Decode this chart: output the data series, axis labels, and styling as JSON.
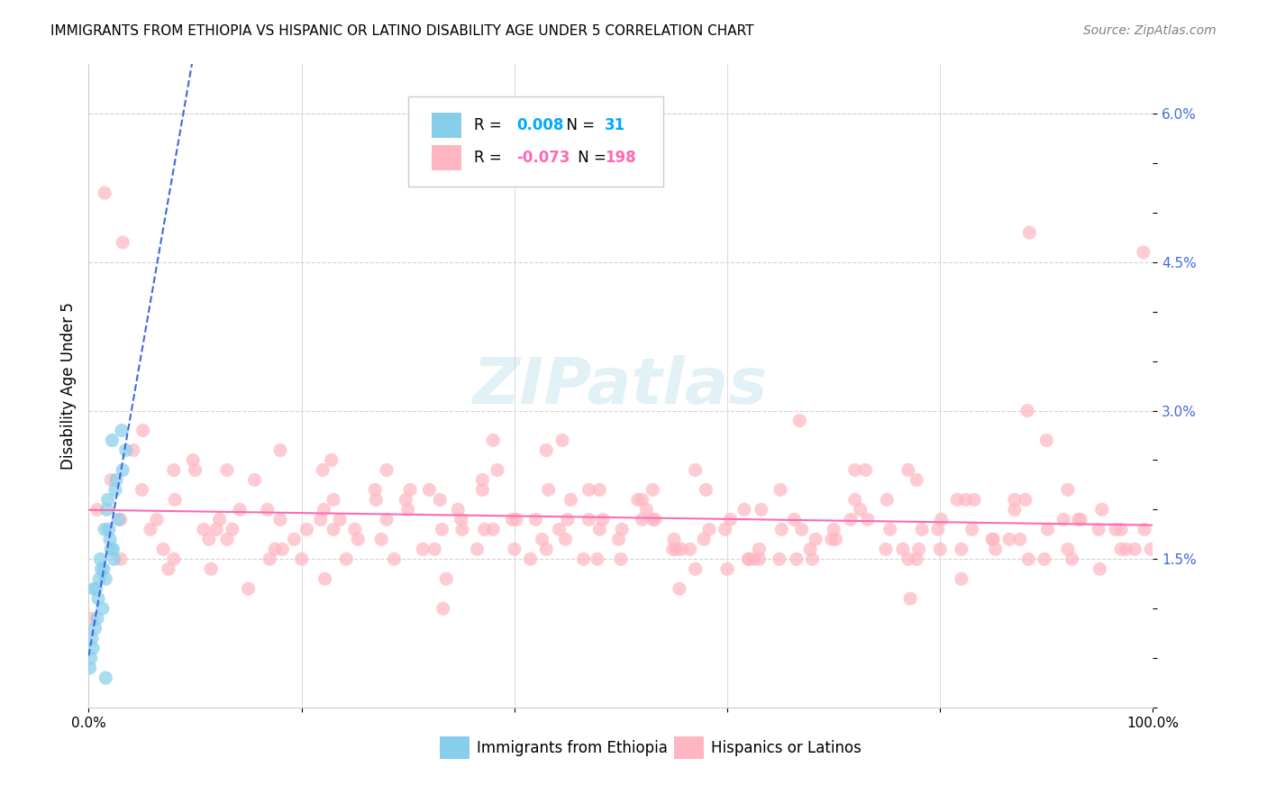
{
  "title": "IMMIGRANTS FROM ETHIOPIA VS HISPANIC OR LATINO DISABILITY AGE UNDER 5 CORRELATION CHART",
  "source": "Source: ZipAtlas.com",
  "xlabel": "",
  "ylabel": "Disability Age Under 5",
  "x_ticks": [
    0.0,
    20.0,
    40.0,
    60.0,
    80.0,
    100.0
  ],
  "x_tick_labels": [
    "0.0%",
    "",
    "",
    "",
    "",
    "100.0%"
  ],
  "y_ticks": [
    0.0,
    0.5,
    1.0,
    1.5,
    2.0,
    2.5,
    3.0,
    3.5,
    4.0,
    4.5,
    5.0,
    5.5,
    6.0
  ],
  "y_tick_labels": [
    "",
    "",
    "",
    "1.5%",
    "",
    "",
    "3.0%",
    "",
    "",
    "4.5%",
    "",
    "",
    "6.0%"
  ],
  "xlim": [
    0.0,
    100.0
  ],
  "ylim": [
    0.0,
    6.5
  ],
  "legend_r_blue": "0.008",
  "legend_n_blue": "31",
  "legend_r_pink": "-0.073",
  "legend_n_pink": "198",
  "blue_color": "#87CEEB",
  "pink_color": "#FFB6C1",
  "trend_blue_color": "#4169E1",
  "trend_pink_color": "#FF69B4",
  "grid_color": "#d3d3d3",
  "watermark": "ZIPatlas",
  "background_color": "#ffffff",
  "blue_scatter": {
    "x": [
      1.2,
      2.1,
      0.5,
      1.8,
      3.2,
      0.8,
      1.5,
      2.5,
      0.3,
      1.1,
      2.8,
      1.6,
      0.9,
      3.5,
      1.3,
      2.0,
      0.6,
      1.7,
      2.3,
      0.4,
      1.4,
      2.6,
      0.7,
      1.9,
      3.1,
      0.2,
      1.0,
      2.2,
      0.1,
      1.6,
      2.4
    ],
    "y": [
      1.4,
      1.6,
      1.2,
      2.1,
      2.4,
      0.9,
      1.8,
      2.2,
      0.7,
      1.5,
      1.9,
      1.3,
      1.1,
      2.6,
      1.0,
      1.7,
      0.8,
      2.0,
      1.6,
      0.6,
      1.4,
      2.3,
      1.2,
      1.8,
      2.8,
      0.5,
      1.3,
      2.7,
      0.4,
      0.3,
      1.5
    ]
  },
  "pink_scatter": {
    "x": [
      1.5,
      3.2,
      5.8,
      8.1,
      12.3,
      15.6,
      18.2,
      20.5,
      22.1,
      25.3,
      28.7,
      30.2,
      32.5,
      35.1,
      38.4,
      40.2,
      42.6,
      45.3,
      47.8,
      50.1,
      52.4,
      55.2,
      57.8,
      60.3,
      62.5,
      65.1,
      67.8,
      70.2,
      72.5,
      75.3,
      77.8,
      80.1,
      82.4,
      85.2,
      87.5,
      90.1,
      92.4,
      95.2,
      97.5,
      99.2,
      2.1,
      6.4,
      9.8,
      13.5,
      16.8,
      19.3,
      23.6,
      26.9,
      31.4,
      34.7,
      37.2,
      41.5,
      44.8,
      48.3,
      51.6,
      54.9,
      58.3,
      61.6,
      64.9,
      68.3,
      71.6,
      74.9,
      78.3,
      81.6,
      84.9,
      88.3,
      91.6,
      94.9,
      98.3,
      0.8,
      4.2,
      7.5,
      10.8,
      14.2,
      17.5,
      21.8,
      24.2,
      27.5,
      29.8,
      33.2,
      36.5,
      39.8,
      43.2,
      46.5,
      49.8,
      53.2,
      56.5,
      59.8,
      63.2,
      66.5,
      69.8,
      73.2,
      76.5,
      79.8,
      83.2,
      86.5,
      89.8,
      93.2,
      96.5,
      99.8,
      5.1,
      11.3,
      22.8,
      33.6,
      44.2,
      55.7,
      66.3,
      77.8,
      88.4,
      99.1,
      44.5,
      66.8,
      88.2,
      11.5,
      22.2,
      55.5,
      77.2,
      33.3,
      0.3,
      50.0,
      25.0,
      75.0,
      10.0,
      90.0,
      40.0,
      60.0,
      15.0,
      85.0,
      35.0,
      65.0,
      20.0,
      70.0,
      30.0,
      80.0,
      45.0,
      55.0,
      5.0,
      95.0,
      18.0,
      82.0,
      28.0,
      72.0,
      38.0,
      62.0,
      48.0,
      52.0,
      8.0,
      92.0,
      42.0,
      58.0,
      3.0,
      97.0,
      23.0,
      77.0,
      43.0,
      57.0,
      13.0,
      87.0,
      37.0,
      63.0,
      53.0,
      47.0,
      17.0,
      83.0,
      27.0,
      73.0,
      7.0,
      93.0,
      32.0,
      68.0,
      12.0,
      88.0,
      22.0,
      78.0,
      52.0,
      48.0,
      62.0,
      38.0,
      72.0,
      28.0,
      82.0,
      18.0,
      92.0,
      8.0,
      67.0,
      33.0,
      57.0,
      43.0,
      47.0,
      53.0,
      77.0,
      23.0,
      87.0,
      13.0,
      97.0,
      3.0,
      37.0,
      63.0
    ],
    "y": [
      5.2,
      4.7,
      1.8,
      2.1,
      1.9,
      2.3,
      1.6,
      1.8,
      2.0,
      1.7,
      1.5,
      2.2,
      1.6,
      1.8,
      2.4,
      1.9,
      1.7,
      2.1,
      1.5,
      1.8,
      2.0,
      1.6,
      1.7,
      1.9,
      1.5,
      1.8,
      1.6,
      1.7,
      2.0,
      1.8,
      1.5,
      1.9,
      2.1,
      1.6,
      1.7,
      1.8,
      1.5,
      2.0,
      1.6,
      1.8,
      2.3,
      1.9,
      2.5,
      1.8,
      2.0,
      1.7,
      1.9,
      2.2,
      1.6,
      2.0,
      1.8,
      1.5,
      1.7,
      1.9,
      2.1,
      1.6,
      1.8,
      2.0,
      1.5,
      1.7,
      1.9,
      1.6,
      1.8,
      2.1,
      1.7,
      1.5,
      1.9,
      1.8,
      1.6,
      2.0,
      2.6,
      1.4,
      1.8,
      2.0,
      1.6,
      1.9,
      1.5,
      1.7,
      2.1,
      1.8,
      1.6,
      1.9,
      2.2,
      1.5,
      1.7,
      1.9,
      1.6,
      1.8,
      2.0,
      1.5,
      1.7,
      1.9,
      1.6,
      1.8,
      2.1,
      1.7,
      1.5,
      1.9,
      1.8,
      1.6,
      2.8,
      1.7,
      2.5,
      1.3,
      1.8,
      1.6,
      1.9,
      2.3,
      4.8,
      4.6,
      2.7,
      2.9,
      3.0,
      1.4,
      1.3,
      1.2,
      1.1,
      1.0,
      0.9,
      1.5,
      1.8,
      2.1,
      2.4,
      2.7,
      1.6,
      1.4,
      1.2,
      1.7,
      1.9,
      2.2,
      1.5,
      1.8,
      2.0,
      1.6,
      1.9,
      1.7,
      2.2,
      1.4,
      2.6,
      1.3,
      1.9,
      2.4,
      2.7,
      1.5,
      1.8,
      2.1,
      2.4,
      1.6,
      1.9,
      2.2,
      1.5,
      1.8,
      2.1,
      2.4,
      2.6,
      1.4,
      1.7,
      2.0,
      2.3,
      1.6,
      1.9,
      2.2,
      1.5,
      1.8,
      2.1,
      2.4,
      1.6,
      1.9,
      2.2,
      1.5,
      1.8,
      2.1,
      2.4,
      1.6,
      1.9,
      2.2,
      1.5,
      1.8,
      2.1,
      2.4,
      1.6,
      1.9,
      2.2,
      1.5,
      1.8,
      2.1,
      2.4,
      1.6,
      1.9,
      2.2,
      1.5,
      1.8,
      2.1,
      2.4,
      1.6,
      1.9,
      2.2,
      1.5
    ]
  }
}
